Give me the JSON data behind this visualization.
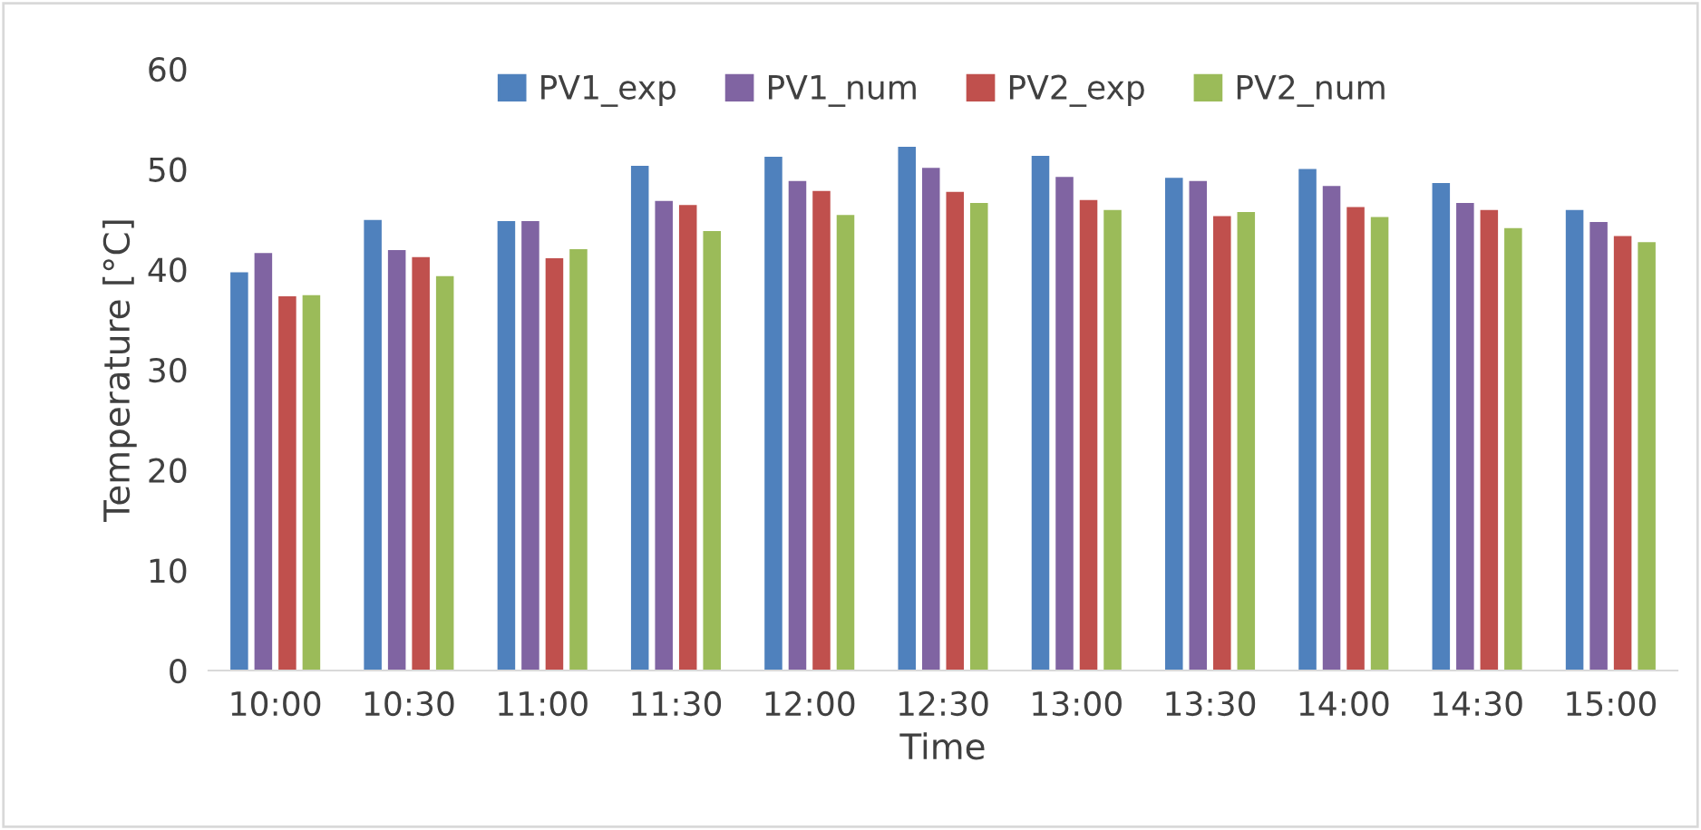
{
  "chart_data": {
    "type": "bar",
    "xlabel": "Time",
    "ylabel": "Temperature [°C]",
    "categories": [
      "10:00",
      "10:30",
      "11:00",
      "11:30",
      "12:00",
      "12:30",
      "13:00",
      "13:30",
      "14:00",
      "14:30",
      "15:00"
    ],
    "series": [
      {
        "name": "PV1_exp",
        "color": "#4f81bd",
        "values": [
          39.8,
          45.0,
          44.9,
          50.4,
          51.3,
          52.3,
          51.4,
          49.2,
          50.1,
          48.7,
          46.0
        ]
      },
      {
        "name": "PV1_num",
        "color": "#8064a2",
        "values": [
          41.7,
          42.0,
          44.9,
          46.9,
          48.9,
          50.2,
          49.3,
          48.9,
          48.4,
          46.7,
          44.8
        ]
      },
      {
        "name": "PV2_exp",
        "color": "#c0504d",
        "values": [
          37.4,
          41.3,
          41.2,
          46.5,
          47.9,
          47.8,
          47.0,
          45.4,
          46.3,
          46.0,
          43.4
        ]
      },
      {
        "name": "PV2_num",
        "color": "#9bbb59",
        "values": [
          37.5,
          39.4,
          42.1,
          43.9,
          45.5,
          46.7,
          46.0,
          45.8,
          45.3,
          44.2,
          42.8
        ]
      }
    ],
    "ylim": [
      0,
      60
    ],
    "yticks": [
      0,
      10,
      20,
      30,
      40,
      50,
      60
    ],
    "grid": false,
    "legend": "top"
  }
}
